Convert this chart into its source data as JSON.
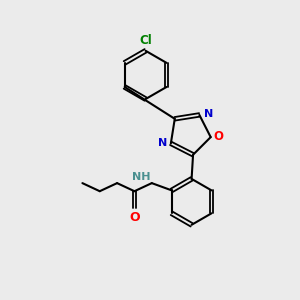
{
  "background_color": "#ebebeb",
  "bond_color": "#000000",
  "N_color": "#0000cd",
  "O_color": "#ff0000",
  "Cl_color": "#008000",
  "NH_color": "#4a9090",
  "figsize": [
    3.0,
    3.0
  ],
  "dpi": 100,
  "xlim": [
    0,
    10
  ],
  "ylim": [
    0,
    10
  ]
}
